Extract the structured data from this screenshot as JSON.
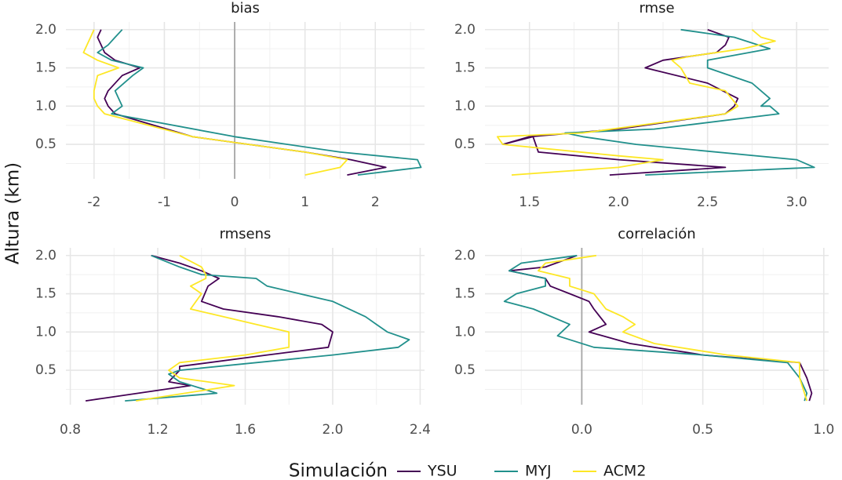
{
  "chart_data": {
    "type": "line",
    "ylabel": "Altura (km)",
    "legend": {
      "title": "Simulación",
      "position": "bottom",
      "entries": [
        {
          "name": "YSU",
          "color": "#440154"
        },
        {
          "name": "MYJ",
          "color": "#21908C"
        },
        {
          "name": "ACM2",
          "color": "#FDE725"
        }
      ]
    },
    "grid": true,
    "panels": [
      {
        "title": "bias",
        "xlim": [
          -2.4,
          2.7
        ],
        "ylim": [
          0.05,
          2.1
        ],
        "xticks": [
          -2,
          -1,
          0,
          1,
          2
        ],
        "xtick_labels": [
          "-2",
          "-1",
          "0",
          "1",
          "2"
        ],
        "yticks": [
          0.5,
          1.0,
          1.5,
          2.0
        ],
        "ytick_labels": [
          "0.5",
          "1.0",
          "1.5",
          "2.0"
        ],
        "zero_line": 0,
        "series": [
          {
            "name": "YSU",
            "x": [
              1.6,
              2.15,
              1.65,
              1.0,
              -0.6,
              -1.7,
              -1.8,
              -1.85,
              -1.8,
              -1.6,
              -1.35,
              -1.7,
              -1.85,
              -1.9,
              -1.95,
              -1.9
            ],
            "y": [
              0.1,
              0.2,
              0.3,
              0.4,
              0.6,
              0.9,
              1.0,
              1.1,
              1.2,
              1.4,
              1.5,
              1.6,
              1.7,
              1.8,
              1.9,
              2.0
            ]
          },
          {
            "name": "MYJ",
            "x": [
              1.75,
              2.65,
              2.6,
              1.5,
              0.0,
              -1.75,
              -1.6,
              -1.65,
              -1.7,
              -1.45,
              -1.3,
              -1.75,
              -1.95,
              -1.8,
              -1.7,
              -1.6
            ],
            "y": [
              0.1,
              0.2,
              0.3,
              0.4,
              0.6,
              0.9,
              1.0,
              1.1,
              1.2,
              1.4,
              1.5,
              1.6,
              1.7,
              1.8,
              1.9,
              2.0
            ]
          },
          {
            "name": "ACM2",
            "x": [
              1.0,
              1.5,
              1.6,
              1.0,
              -0.6,
              -1.85,
              -1.95,
              -2.0,
              -2.0,
              -1.95,
              -1.65,
              -1.95,
              -2.15,
              -2.1,
              -2.05,
              -2.0
            ],
            "y": [
              0.1,
              0.2,
              0.3,
              0.4,
              0.6,
              0.9,
              1.0,
              1.1,
              1.2,
              1.4,
              1.5,
              1.6,
              1.7,
              1.8,
              1.9,
              2.0
            ]
          }
        ]
      },
      {
        "title": "rmse",
        "xlim": [
          1.25,
          3.18
        ],
        "ylim": [
          0.05,
          2.1
        ],
        "xticks": [
          1.5,
          2.0,
          2.5,
          3.0
        ],
        "xtick_labels": [
          "1.5",
          "2.0",
          "2.5",
          "3.0"
        ],
        "yticks": [
          0.5,
          1.0,
          1.5,
          2.0
        ],
        "ytick_labels": [
          "0.5",
          "1.0",
          "1.5",
          "2.0"
        ],
        "series": [
          {
            "name": "YSU",
            "x": [
              1.95,
              2.6,
              2.0,
              1.55,
              1.52,
              1.35,
              1.5,
              2.0,
              2.6,
              2.65,
              2.67,
              2.5,
              2.15,
              2.25,
              2.55,
              2.6,
              2.62,
              2.5
            ],
            "y": [
              0.1,
              0.2,
              0.3,
              0.4,
              0.6,
              0.5,
              0.6,
              0.7,
              0.9,
              1.0,
              1.1,
              1.3,
              1.5,
              1.6,
              1.7,
              1.8,
              1.9,
              2.0
            ]
          },
          {
            "name": "MYJ",
            "x": [
              2.15,
              3.1,
              3.0,
              2.1,
              1.8,
              1.7,
              2.2,
              2.9,
              2.85,
              2.8,
              2.85,
              2.75,
              2.5,
              2.5,
              2.85,
              2.65,
              2.5,
              2.35
            ],
            "y": [
              0.1,
              0.2,
              0.3,
              0.5,
              0.6,
              0.65,
              0.7,
              0.9,
              1.0,
              1.0,
              1.1,
              1.3,
              1.5,
              1.6,
              1.75,
              1.9,
              1.95,
              2.0
            ]
          },
          {
            "name": "ACM2",
            "x": [
              1.4,
              2.0,
              2.25,
              2.0,
              1.35,
              1.32,
              1.8,
              2.6,
              2.67,
              2.6,
              2.4,
              2.35,
              2.3,
              2.4,
              2.7,
              2.88,
              2.8,
              2.75
            ],
            "y": [
              0.1,
              0.2,
              0.3,
              0.35,
              0.5,
              0.6,
              0.65,
              0.9,
              1.0,
              1.2,
              1.3,
              1.5,
              1.6,
              1.65,
              1.75,
              1.85,
              1.9,
              2.0
            ]
          }
        ]
      },
      {
        "title": "rmsens",
        "xlim": [
          0.78,
          2.42
        ],
        "ylim": [
          0.05,
          2.1
        ],
        "xticks": [
          0.8,
          1.2,
          1.6,
          2.0,
          2.4
        ],
        "xtick_labels": [
          "0.8",
          "1.2",
          "1.6",
          "2.0",
          "2.4"
        ],
        "yticks": [
          0.5,
          1.0,
          1.5,
          2.0
        ],
        "ytick_labels": [
          "0.5",
          "1.0",
          "1.5",
          "2.0"
        ],
        "series": [
          {
            "name": "YSU",
            "x": [
              0.87,
              1.35,
              1.25,
              1.3,
              1.3,
              1.7,
              1.98,
              2.0,
              1.95,
              1.75,
              1.5,
              1.4,
              1.43,
              1.48,
              1.4,
              1.3,
              1.17
            ],
            "y": [
              0.1,
              0.3,
              0.35,
              0.5,
              0.55,
              0.7,
              0.8,
              1.0,
              1.1,
              1.2,
              1.3,
              1.4,
              1.6,
              1.7,
              1.8,
              1.9,
              2.0
            ]
          },
          {
            "name": "MYJ",
            "x": [
              1.05,
              1.47,
              1.3,
              1.25,
              1.3,
              2.0,
              2.3,
              2.35,
              2.25,
              2.2,
              2.15,
              2.0,
              1.7,
              1.65,
              1.4,
              1.3,
              1.17
            ],
            "y": [
              0.1,
              0.2,
              0.35,
              0.45,
              0.5,
              0.7,
              0.8,
              0.9,
              1.0,
              1.1,
              1.2,
              1.4,
              1.6,
              1.7,
              1.75,
              1.85,
              2.0
            ]
          },
          {
            "name": "ACM2",
            "x": [
              1.1,
              1.55,
              1.3,
              1.25,
              1.3,
              1.6,
              1.8,
              1.8,
              1.65,
              1.5,
              1.35,
              1.4,
              1.35,
              1.42,
              1.42,
              1.4,
              1.3
            ],
            "y": [
              0.1,
              0.3,
              0.4,
              0.5,
              0.6,
              0.7,
              0.8,
              1.0,
              1.1,
              1.2,
              1.3,
              1.5,
              1.6,
              1.7,
              1.75,
              1.85,
              2.0
            ]
          }
        ]
      },
      {
        "title": "correlación",
        "xlim": [
          -0.4,
          1.02
        ],
        "ylim": [
          0.05,
          2.1
        ],
        "xticks": [
          0.0,
          0.5,
          1.0
        ],
        "xtick_labels": [
          "0.0",
          "0.5",
          "1.0"
        ],
        "yticks": [
          0.5,
          1.0,
          1.5,
          2.0
        ],
        "ytick_labels": [
          "0.5",
          "1.0",
          "1.5",
          "2.0"
        ],
        "zero_line": 0,
        "series": [
          {
            "name": "YSU",
            "x": [
              0.94,
              0.95,
              0.93,
              0.9,
              0.5,
              0.2,
              0.03,
              0.1,
              0.05,
              0.03,
              -0.05,
              -0.13,
              -0.15,
              -0.3,
              -0.15,
              -0.02
            ],
            "y": [
              0.1,
              0.2,
              0.4,
              0.6,
              0.7,
              0.85,
              1.0,
              1.1,
              1.3,
              1.4,
              1.5,
              1.6,
              1.7,
              1.8,
              1.85,
              2.0
            ]
          },
          {
            "name": "MYJ",
            "x": [
              0.92,
              0.93,
              0.9,
              0.85,
              0.5,
              0.05,
              -0.1,
              -0.05,
              -0.2,
              -0.32,
              -0.27,
              -0.15,
              -0.15,
              -0.3,
              -0.25,
              -0.02
            ],
            "y": [
              0.1,
              0.2,
              0.4,
              0.6,
              0.7,
              0.8,
              0.95,
              1.1,
              1.3,
              1.4,
              1.5,
              1.6,
              1.7,
              1.8,
              1.9,
              2.0
            ]
          },
          {
            "name": "ACM2",
            "x": [
              0.93,
              0.92,
              0.9,
              0.9,
              0.6,
              0.3,
              0.17,
              0.22,
              0.17,
              0.1,
              0.05,
              -0.05,
              -0.05,
              -0.18,
              -0.15,
              0.06
            ],
            "y": [
              0.1,
              0.2,
              0.4,
              0.6,
              0.7,
              0.85,
              1.0,
              1.1,
              1.2,
              1.3,
              1.5,
              1.6,
              1.7,
              1.8,
              1.9,
              2.0
            ]
          }
        ]
      }
    ]
  }
}
